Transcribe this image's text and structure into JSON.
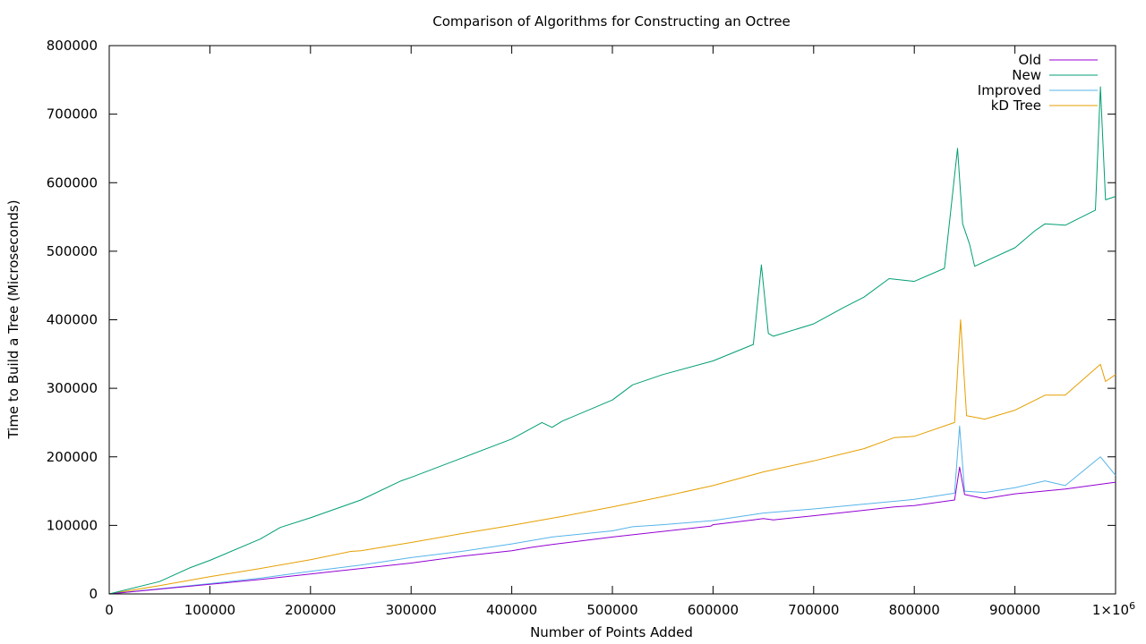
{
  "chart_data": {
    "type": "line",
    "title": "Comparison of Algorithms for Constructing an Octree",
    "xlabel": "Number of Points Added",
    "ylabel": "Time to Build a Tree (Microseconds)",
    "xlim": [
      0,
      1000000
    ],
    "ylim": [
      0,
      800000
    ],
    "x_ticks": [
      "0",
      "100000",
      "200000",
      "300000",
      "400000",
      "500000",
      "600000",
      "700000",
      "800000",
      "900000",
      "1×10"
    ],
    "x_tick_exponent": "6",
    "y_ticks": [
      "0",
      "100000",
      "200000",
      "300000",
      "400000",
      "500000",
      "600000",
      "700000",
      "800000"
    ],
    "grid": false,
    "legend_position": "top-right",
    "series": [
      {
        "name": "Old",
        "color": "#9400d3",
        "x": [
          0,
          50000,
          100000,
          150000,
          200000,
          250000,
          300000,
          350000,
          400000,
          420000,
          440000,
          500000,
          598000,
          600000,
          640000,
          650000,
          660000,
          700000,
          750000,
          780000,
          800000,
          840000,
          845000,
          850000,
          870000,
          900000,
          950000,
          1000000
        ],
        "y": [
          0,
          7000,
          14000,
          21000,
          29000,
          37000,
          45000,
          55000,
          63000,
          68000,
          72000,
          83000,
          99000,
          101000,
          108000,
          110000,
          108000,
          114000,
          122000,
          127000,
          129000,
          137000,
          185000,
          145000,
          139000,
          146000,
          153000,
          163000
        ]
      },
      {
        "name": "New",
        "color": "#009e73",
        "x": [
          0,
          50000,
          80000,
          100000,
          150000,
          170000,
          200000,
          250000,
          290000,
          300000,
          350000,
          400000,
          430000,
          440000,
          450000,
          500000,
          520000,
          550000,
          600000,
          640000,
          648000,
          655000,
          660000,
          700000,
          730000,
          750000,
          775000,
          800000,
          830000,
          843000,
          848000,
          855000,
          860000,
          900000,
          920000,
          930000,
          950000,
          980000,
          985000,
          990000,
          1000000
        ],
        "y": [
          0,
          18000,
          38000,
          49000,
          80000,
          97000,
          111000,
          137000,
          165000,
          170000,
          198000,
          226000,
          250000,
          243000,
          252000,
          283000,
          305000,
          320000,
          340000,
          364000,
          480000,
          380000,
          376000,
          394000,
          418000,
          433000,
          460000,
          456000,
          475000,
          650000,
          540000,
          510000,
          478000,
          505000,
          530000,
          540000,
          538000,
          560000,
          740000,
          575000,
          580000
        ]
      },
      {
        "name": "Improved",
        "color": "#56b4e9",
        "x": [
          0,
          50000,
          100000,
          150000,
          200000,
          250000,
          300000,
          350000,
          400000,
          440000,
          500000,
          520000,
          550000,
          600000,
          650000,
          700000,
          750000,
          800000,
          840000,
          845000,
          850000,
          870000,
          900000,
          930000,
          950000,
          985000,
          1000000
        ],
        "y": [
          0,
          7500,
          15000,
          23000,
          33000,
          42000,
          53000,
          62000,
          73000,
          83000,
          92000,
          98000,
          101000,
          107000,
          118000,
          124000,
          131000,
          138000,
          147000,
          245000,
          150000,
          148000,
          155000,
          165000,
          158000,
          200000,
          173000
        ]
      },
      {
        "name": "kD Tree",
        "color": "#e69f00",
        "x": [
          0,
          50000,
          100000,
          150000,
          200000,
          240000,
          250000,
          300000,
          350000,
          400000,
          450000,
          500000,
          550000,
          600000,
          650000,
          700000,
          750000,
          780000,
          800000,
          840000,
          846000,
          852000,
          870000,
          900000,
          930000,
          950000,
          985000,
          990000,
          1000000
        ],
        "y": [
          0,
          12000,
          25000,
          37000,
          50000,
          62000,
          63000,
          75000,
          88000,
          100000,
          113000,
          127000,
          142000,
          158000,
          178000,
          194000,
          212000,
          228000,
          230000,
          250000,
          400000,
          260000,
          255000,
          268000,
          290000,
          290000,
          335000,
          310000,
          320000
        ]
      }
    ]
  }
}
